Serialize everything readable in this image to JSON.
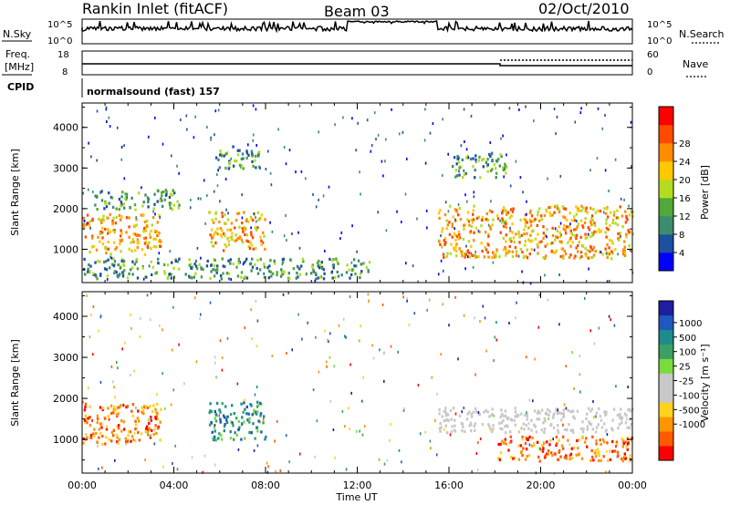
{
  "header": {
    "station": "Rankin Inlet (fitACF)",
    "beam": "Beam 03",
    "date": "02/Oct/2010"
  },
  "nsky_panel": {
    "label_left": "N.Sky",
    "label_right": "N.Search",
    "ticks_left": [
      "10^5",
      "10^0"
    ],
    "ticks_right": [
      "10^5",
      "10^0"
    ]
  },
  "freq_panel": {
    "label_left_1": "Freq.",
    "label_left_2": "[MHz]",
    "label_right": "Nave",
    "ticks_left": [
      "18",
      "8"
    ],
    "ticks_right": [
      "60",
      "0"
    ]
  },
  "cpid": {
    "label": "CPID",
    "value": "normalsound (fast) 157"
  },
  "colors": {
    "power": [
      "#0000ff",
      "#1e50a0",
      "#3c8c6e",
      "#52a838",
      "#b4dc1e",
      "#ffc800",
      "#ff8c00",
      "#ff4b00",
      "#ff0000"
    ],
    "velocity": [
      "#ff0000",
      "#ff5a00",
      "#ff9600",
      "#ffd21e",
      "#c8c8c8",
      "#c8c8c8",
      "#78dc3c",
      "#3ca064",
      "#1e8c8c",
      "#1e5abe",
      "#1e1ea0"
    ]
  },
  "chart_data": [
    {
      "type": "heatmap",
      "name": "power",
      "xlabel": "",
      "ylabel": "Slant Range [km]",
      "xlim": [
        "00:00",
        "24:00"
      ],
      "ylim": [
        180,
        4600
      ],
      "yticks": [
        "1000",
        "2000",
        "3000",
        "4000"
      ],
      "colorbar": {
        "label": "Power [dB]",
        "ticks": [
          "4",
          "8",
          "12",
          "16",
          "20",
          "24",
          "28"
        ]
      },
      "echo_regions": [
        {
          "start_h": 0.0,
          "end_h": 3.4,
          "range_km": [
            900,
            1900
          ],
          "level": "high"
        },
        {
          "start_h": 0.5,
          "end_h": 4.2,
          "range_km": [
            2000,
            2500
          ],
          "level": "medium"
        },
        {
          "start_h": 5.5,
          "end_h": 8.0,
          "range_km": [
            1000,
            1950
          ],
          "level": "high"
        },
        {
          "start_h": 5.8,
          "end_h": 7.8,
          "range_km": [
            3000,
            3600
          ],
          "level": "medium"
        },
        {
          "start_h": 0.0,
          "end_h": 12.5,
          "range_km": [
            300,
            800
          ],
          "level": "medium"
        },
        {
          "start_h": 15.5,
          "end_h": 24.0,
          "range_km": [
            800,
            2100
          ],
          "level": "high"
        },
        {
          "start_h": 16.0,
          "end_h": 18.5,
          "range_km": [
            2800,
            3400
          ],
          "level": "medium"
        }
      ]
    },
    {
      "type": "heatmap",
      "name": "velocity",
      "xlabel": "Time UT",
      "ylabel": "Slant Range [km]",
      "xlim": [
        "00:00",
        "24:00"
      ],
      "ylim": [
        180,
        4600
      ],
      "xticks": [
        "00:00",
        "04:00",
        "08:00",
        "12:00",
        "16:00",
        "20:00",
        "00:00"
      ],
      "yticks": [
        "1000",
        "2000",
        "3000",
        "4000"
      ],
      "colorbar": {
        "label": "Velocity [m s⁻¹]",
        "ticks": [
          "1000",
          "500",
          "100",
          "25",
          "-25",
          "-100",
          "-500",
          "-1000"
        ]
      },
      "echo_regions": [
        {
          "start_h": 0.0,
          "end_h": 3.4,
          "range_km": [
            900,
            1900
          ],
          "level": "negative"
        },
        {
          "start_h": 5.5,
          "end_h": 8.0,
          "range_km": [
            1000,
            1950
          ],
          "level": "positive"
        },
        {
          "start_h": 15.5,
          "end_h": 24.0,
          "range_km": [
            1200,
            1800
          ],
          "level": "ground"
        },
        {
          "start_h": 18.0,
          "end_h": 24.0,
          "range_km": [
            500,
            1100
          ],
          "level": "negative"
        }
      ]
    }
  ]
}
